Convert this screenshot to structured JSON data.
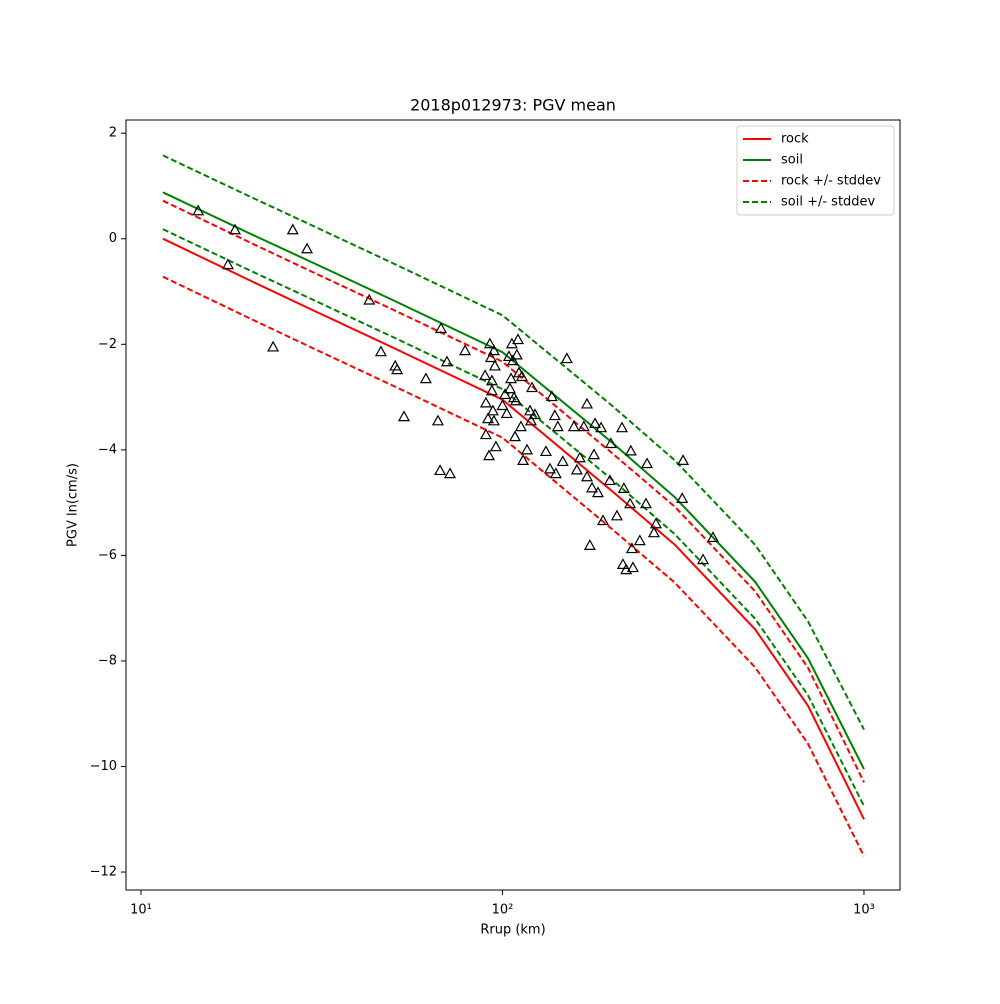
{
  "chart_data": {
    "type": "line",
    "title": "2018p012973: PGV mean",
    "xlabel": "Rrup (km)",
    "ylabel": "PGV ln(cm/s)",
    "xscale": "log",
    "xlim": [
      9.09,
      1258
    ],
    "ylim": [
      -12.34,
      2.25
    ],
    "xticks": [
      {
        "value": 10,
        "label": "10¹"
      },
      {
        "value": 100,
        "label": "10²"
      },
      {
        "value": 1000,
        "label": "10³"
      }
    ],
    "yticks": [
      {
        "value": -12,
        "label": "−12"
      },
      {
        "value": -10,
        "label": "−10"
      },
      {
        "value": -8,
        "label": "−8"
      },
      {
        "value": -6,
        "label": "−6"
      },
      {
        "value": -4,
        "label": "−4"
      },
      {
        "value": -2,
        "label": "−2"
      },
      0,
      2
    ],
    "legend": "upper right",
    "x": [
      11.5,
      20,
      30,
      50,
      100,
      200,
      300,
      500,
      700,
      1000
    ],
    "series": [
      {
        "name": "rock",
        "color": "#ff0000",
        "dashed": false,
        "values": [
          0,
          -0.79,
          -1.36,
          -2.07,
          -3.05,
          -4.77,
          -5.8,
          -7.4,
          -8.85,
          -11.0
        ]
      },
      {
        "name": "soil",
        "color": "#008000",
        "dashed": false,
        "values": [
          0.88,
          0.1,
          -0.46,
          -1.17,
          -2.15,
          -3.85,
          -4.9,
          -6.5,
          -7.95,
          -10.05
        ]
      },
      {
        "name": "rock +/- stddev",
        "color": "#ff0000",
        "dashed": true,
        "values_upper": [
          0.72,
          -0.07,
          -0.64,
          -1.35,
          -2.33,
          -4.05,
          -5.08,
          -6.68,
          -8.13,
          -10.3
        ],
        "values_lower": [
          -0.72,
          -1.51,
          -2.08,
          -2.79,
          -3.77,
          -5.49,
          -6.52,
          -8.12,
          -9.57,
          -11.7
        ]
      },
      {
        "name": "soil +/- stddev",
        "color": "#008000",
        "dashed": true,
        "values_upper": [
          1.58,
          0.8,
          0.24,
          -0.47,
          -1.45,
          -3.15,
          -4.2,
          -5.8,
          -7.25,
          -9.3
        ],
        "values_lower": [
          0.18,
          -0.6,
          -1.16,
          -1.87,
          -2.85,
          -4.55,
          -5.6,
          -7.2,
          -8.65,
          -10.75
        ]
      }
    ],
    "points": {
      "marker": "triangle",
      "color": "#000000",
      "x": [
        14.4,
        18.2,
        17.4,
        23.2,
        26.3,
        28.8,
        42.8,
        46.1,
        50.5,
        51.1,
        53.4,
        61.4,
        66.3,
        67.2,
        67.6,
        70.2,
        71.6,
        78.8,
        89.5,
        90.0,
        90.0,
        91.2,
        91.8,
        92.3,
        92.9,
        93.5,
        93.5,
        94.1,
        94.7,
        94.7,
        95.3,
        95.9,
        100,
        101.6,
        102.8,
        104.2,
        104.9,
        105.6,
        106.2,
        106.9,
        107.6,
        108.3,
        109.0,
        109.6,
        110.4,
        111.1,
        112.5,
        113.2,
        114.0,
        116.9,
        119.2,
        119.9,
        120.7,
        123.0,
        131.9,
        135.3,
        137.0,
        139.6,
        140.5,
        142.3,
        146.8,
        150.7,
        157.6,
        160.6,
        163.7,
        167.9,
        171.3,
        171.3,
        174.5,
        176.9,
        179.1,
        180.3,
        183.7,
        187.4,
        189.7,
        198.2,
        199.5,
        207.3,
        214.1,
        215.4,
        216.7,
        219.8,
        225.4,
        226.5,
        228.1,
        229.6,
        239.9,
        249.4,
        251.1,
        262.4,
        265.8,
        314.2,
        315.9,
        358.8,
        382.2
      ],
      "y": [
        0.53,
        0.17,
        -0.49,
        -2.05,
        0.17,
        -0.19,
        -1.16,
        -2.14,
        -2.41,
        -2.48,
        -3.37,
        -2.65,
        -3.45,
        -4.39,
        -1.7,
        -2.33,
        -4.45,
        -2.12,
        -2.59,
        -3.11,
        -3.71,
        -3.41,
        -4.11,
        -1.99,
        -2.25,
        -2.69,
        -2.88,
        -3.26,
        -3.45,
        -2.12,
        -2.41,
        -3.94,
        -3.16,
        -2.95,
        -3.31,
        -2.23,
        -2.84,
        -2.65,
        -1.99,
        -2.31,
        -3.01,
        -3.75,
        -3.07,
        -2.2,
        -1.91,
        -2.54,
        -3.56,
        -2.61,
        -4.2,
        -4.0,
        -3.26,
        -3.45,
        -2.82,
        -3.33,
        -4.03,
        -4.36,
        -2.99,
        -3.35,
        -4.45,
        -3.56,
        -4.22,
        -2.27,
        -3.56,
        -4.38,
        -4.15,
        -3.56,
        -3.13,
        -4.51,
        -5.81,
        -4.72,
        -4.09,
        -3.5,
        -4.81,
        -3.58,
        -5.34,
        -4.58,
        -3.88,
        -5.25,
        -3.58,
        -6.17,
        -4.73,
        -6.27,
        -5.02,
        -4.02,
        -5.87,
        -6.23,
        -5.72,
        -5.02,
        -4.26,
        -5.57,
        -5.4,
        -4.92,
        -4.2,
        -6.08,
        -5.66
      ]
    }
  }
}
